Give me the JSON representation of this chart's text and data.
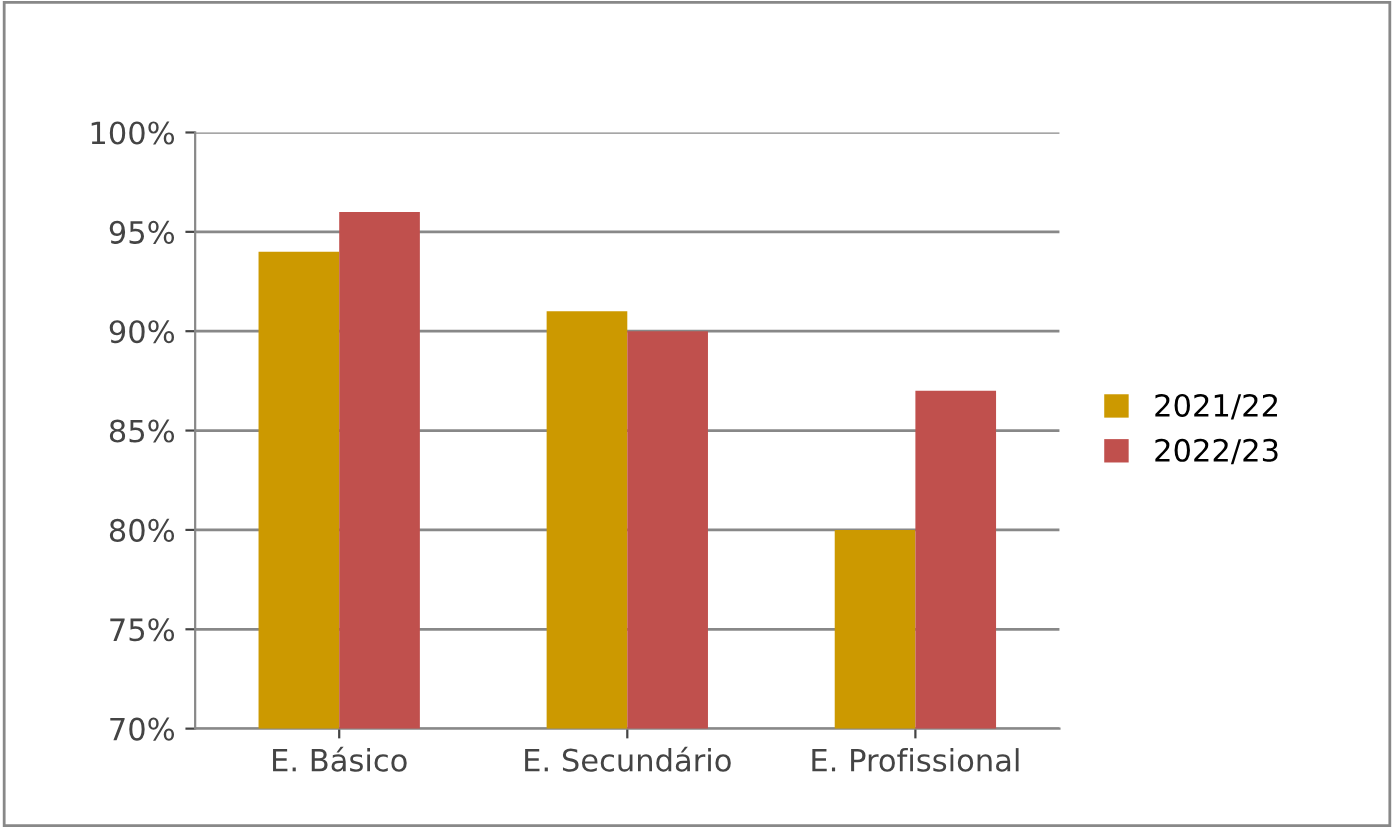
{
  "chart_data": {
    "type": "bar",
    "categories": [
      "E. Básico",
      "E. Secundário",
      "E. Profissional"
    ],
    "series": [
      {
        "name": "2021/22",
        "color": "#cc9900",
        "values": [
          94,
          91,
          80
        ]
      },
      {
        "name": "2022/23",
        "color": "#c0504d",
        "values": [
          96,
          90,
          87
        ]
      }
    ],
    "ylim": [
      70,
      100
    ],
    "yticks": [
      {
        "value": 70,
        "label": "70%"
      },
      {
        "value": 75,
        "label": "75%"
      },
      {
        "value": 80,
        "label": "80%"
      },
      {
        "value": 85,
        "label": "85%"
      },
      {
        "value": 90,
        "label": "90%"
      },
      {
        "value": 95,
        "label": "95%"
      },
      {
        "value": 100,
        "label": "100%"
      }
    ],
    "grid": "y",
    "legend": "right"
  }
}
